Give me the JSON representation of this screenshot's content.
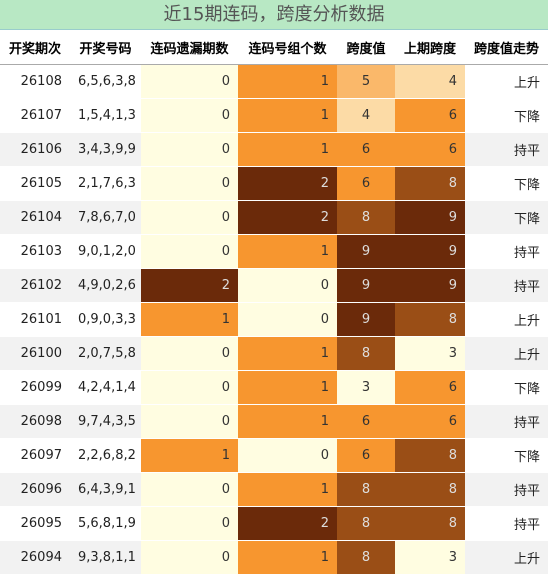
{
  "title": "近15期连码，跨度分析数据",
  "table": {
    "header": [
      "开奖期次",
      "开奖号码",
      "连码遗漏期数",
      "连码号组个数",
      "跨度值",
      "上期跨度",
      "跨度值走势"
    ],
    "heat_colors": [
      "#fffde1",
      "#f7962f",
      "#6b2a0a"
    ],
    "rows": [
      [
        "26108",
        "6,5,6,3,8",
        0,
        1,
        5,
        4,
        "上升"
      ],
      [
        "26107",
        "1,5,4,1,3",
        0,
        1,
        4,
        6,
        "下降"
      ],
      [
        "26106",
        "3,4,3,9,9",
        0,
        1,
        6,
        6,
        "持平"
      ],
      [
        "26105",
        "2,1,7,6,3",
        0,
        2,
        6,
        8,
        "下降"
      ],
      [
        "26104",
        "7,8,6,7,0",
        0,
        2,
        8,
        9,
        "下降"
      ],
      [
        "26103",
        "9,0,1,2,0",
        0,
        1,
        9,
        9,
        "持平"
      ],
      [
        "26102",
        "4,9,0,2,6",
        2,
        0,
        9,
        9,
        "持平"
      ],
      [
        "26101",
        "0,9,0,3,3",
        1,
        0,
        9,
        8,
        "上升"
      ],
      [
        "26100",
        "2,0,7,5,8",
        0,
        1,
        8,
        3,
        "上升"
      ],
      [
        "26099",
        "4,2,4,1,4",
        0,
        1,
        3,
        6,
        "下降"
      ],
      [
        "26098",
        "9,7,4,3,5",
        0,
        1,
        6,
        6,
        "持平"
      ],
      [
        "26097",
        "2,2,6,8,2",
        1,
        0,
        6,
        8,
        "下降"
      ],
      [
        "26096",
        "6,4,3,9,1",
        0,
        1,
        8,
        8,
        "持平"
      ],
      [
        "26095",
        "5,6,8,1,9",
        0,
        2,
        8,
        8,
        "持平"
      ],
      [
        "26094",
        "9,3,8,1,1",
        0,
        1,
        8,
        3,
        "上升"
      ]
    ]
  }
}
